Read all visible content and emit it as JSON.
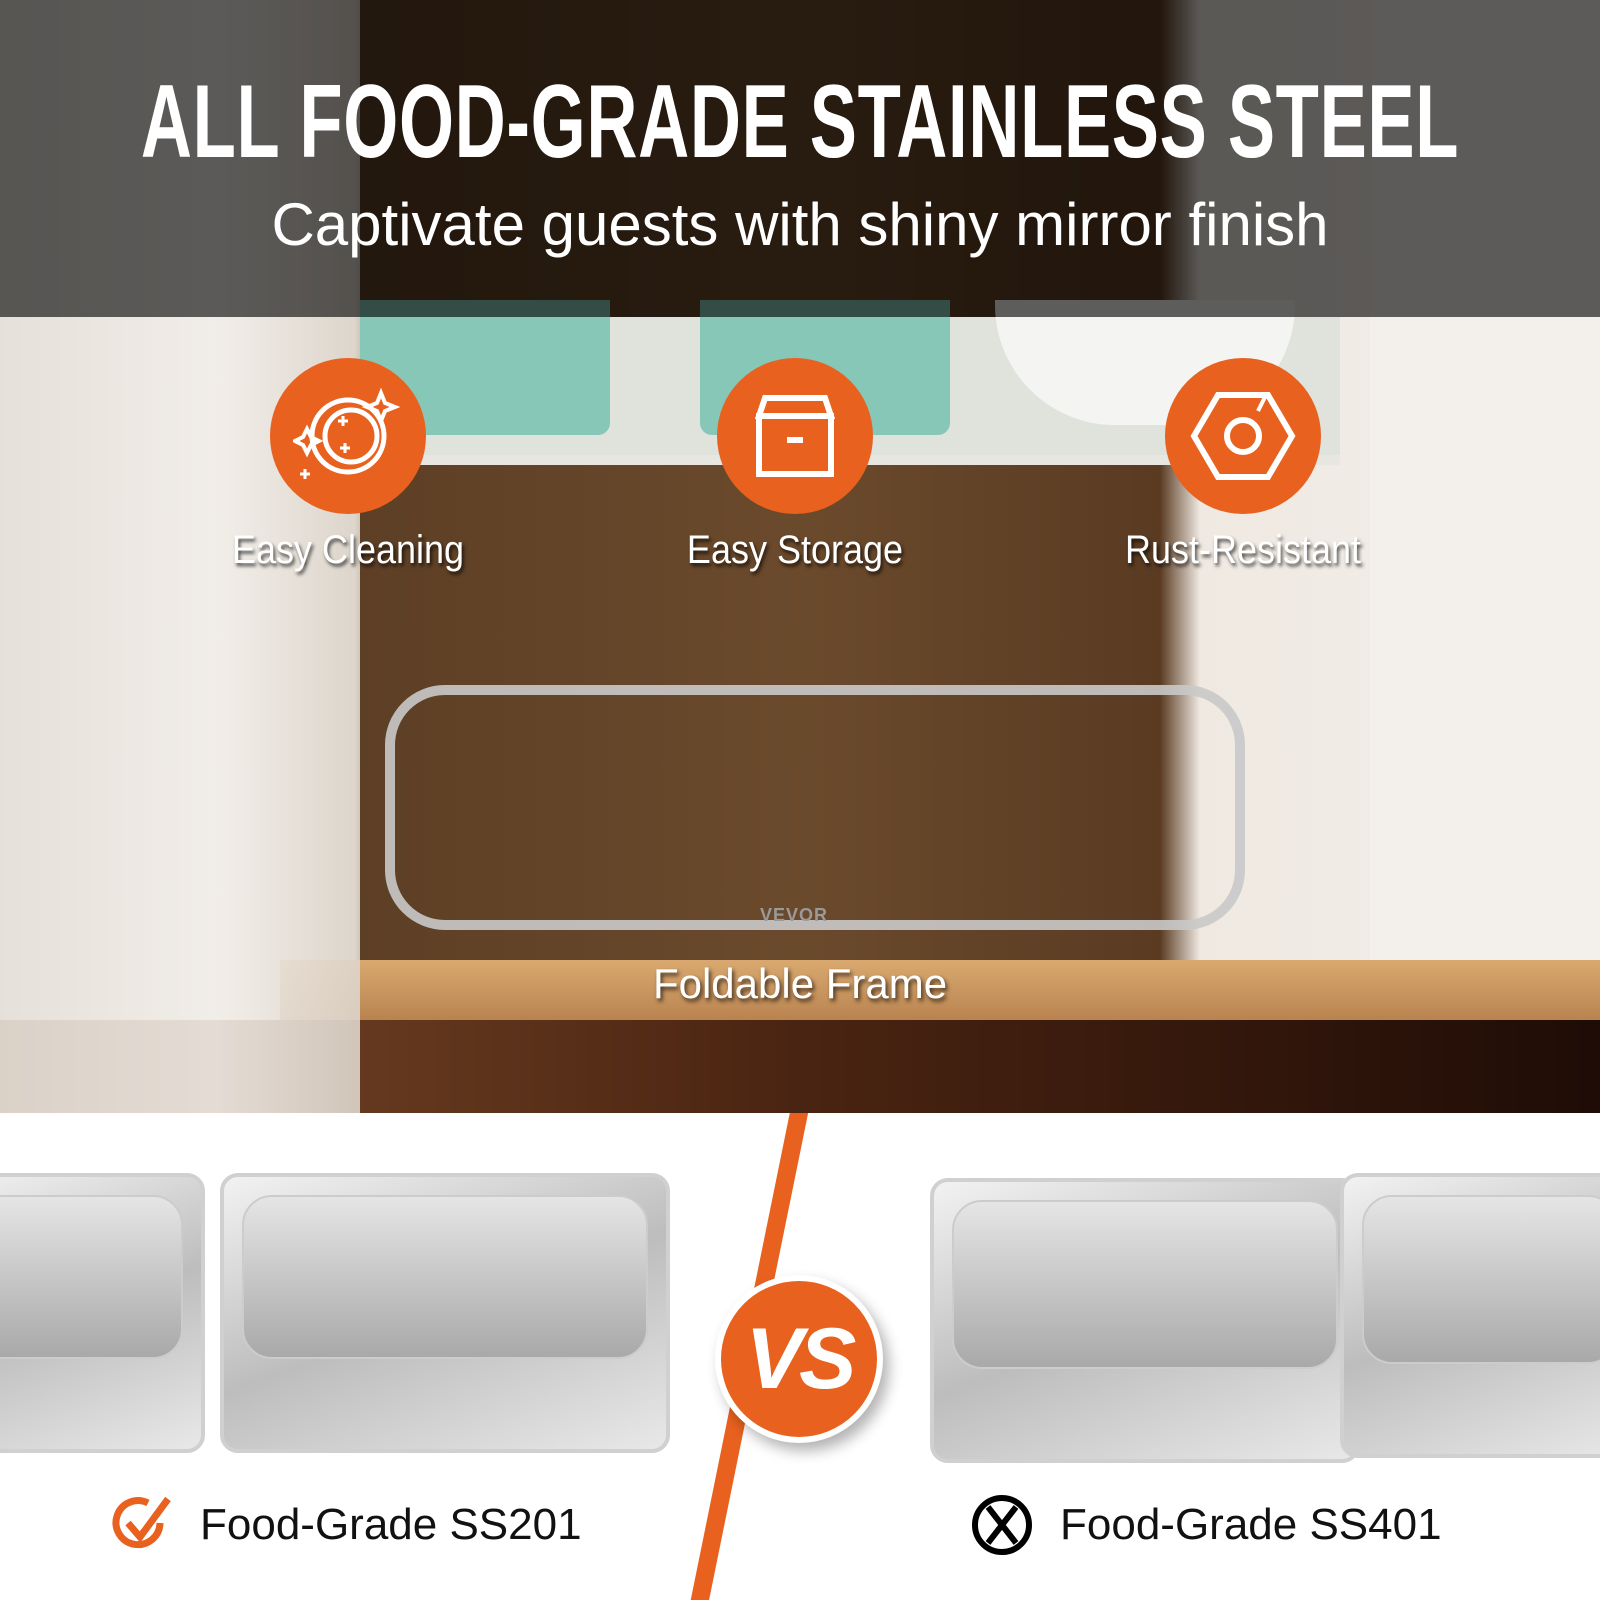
{
  "header": {
    "title": "ALL FOOD-GRADE STAINLESS STEEL",
    "subtitle": "Captivate guests with shiny mirror finish"
  },
  "features": [
    {
      "label": "Easy Cleaning",
      "icon": "sparkling-plate-icon"
    },
    {
      "label": "Easy Storage",
      "icon": "storage-box-icon"
    },
    {
      "label": "Rust-Resistant",
      "icon": "hex-nut-icon"
    }
  ],
  "frame_label": "Foldable Frame",
  "frame_brand": "VEVOR",
  "comparison": {
    "vs_label": "VS",
    "left": {
      "label": "Food-Grade SS201",
      "icon": "check-icon"
    },
    "right": {
      "label": "Food-Grade SS401",
      "icon": "cross-circle-icon"
    }
  },
  "colors": {
    "accent": "#e8611f",
    "header_overlay": "#000000"
  }
}
